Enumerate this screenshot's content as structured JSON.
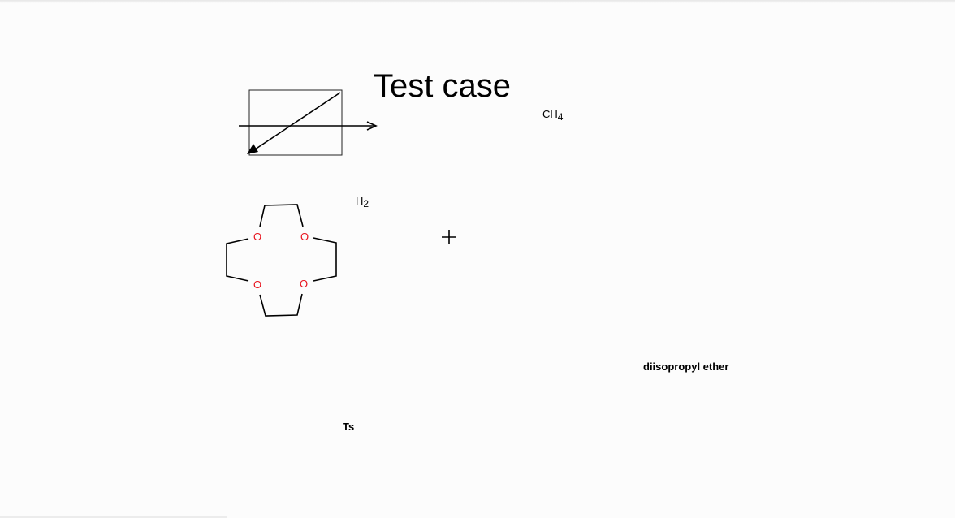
{
  "title": "Test case",
  "methane": {
    "main": "CH",
    "sub": "4"
  },
  "hydrogen": {
    "main": "H",
    "sub": "2"
  },
  "plus_symbol": "+",
  "crown_ether": {
    "oxygen_labels": [
      "O",
      "O",
      "O",
      "O"
    ]
  },
  "labels": {
    "solvent": "diisopropyl ether",
    "protecting_group": "Ts"
  },
  "colors": {
    "background": "#fcfcfc",
    "oxygen": "#e8141e",
    "ink": "#000000"
  }
}
